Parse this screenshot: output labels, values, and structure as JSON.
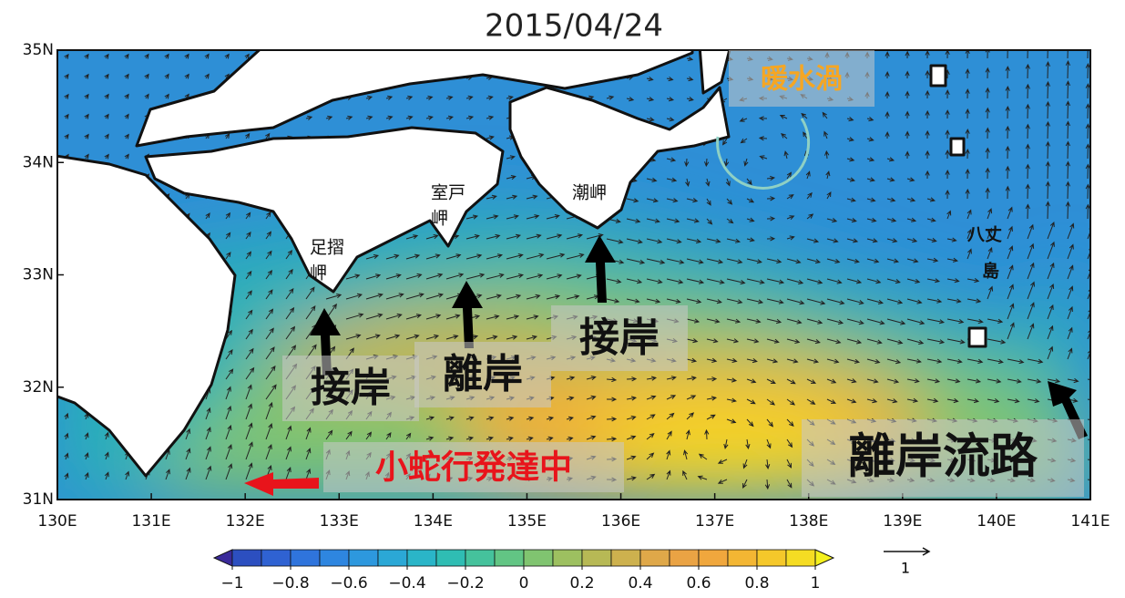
{
  "title": "2015/04/24",
  "map": {
    "xlim": [
      130,
      141
    ],
    "ylim": [
      31,
      35
    ],
    "xticks": [
      {
        "value": 130,
        "label": "130E"
      },
      {
        "value": 131,
        "label": "131E"
      },
      {
        "value": 132,
        "label": "132E"
      },
      {
        "value": 133,
        "label": "133E"
      },
      {
        "value": 134,
        "label": "134E"
      },
      {
        "value": 135,
        "label": "135E"
      },
      {
        "value": 136,
        "label": "136E"
      },
      {
        "value": 137,
        "label": "137E"
      },
      {
        "value": 138,
        "label": "138E"
      },
      {
        "value": 139,
        "label": "139E"
      },
      {
        "value": 140,
        "label": "140E"
      },
      {
        "value": 141,
        "label": "141E"
      }
    ],
    "yticks": [
      {
        "value": 31,
        "label": "31N"
      },
      {
        "value": 32,
        "label": "32N"
      },
      {
        "value": 33,
        "label": "33N"
      },
      {
        "value": 34,
        "label": "34N"
      },
      {
        "value": 35,
        "label": "35N"
      }
    ]
  },
  "places": [
    {
      "lines": [
        "足摺",
        "岬"
      ]
    },
    {
      "lines": [
        "室戸",
        "岬"
      ]
    },
    {
      "lines": [
        "潮岬"
      ]
    },
    {
      "lines": [
        "八丈",
        "島"
      ]
    }
  ],
  "annotations": [
    {
      "text": "暖水渦",
      "color": "#f5a623"
    },
    {
      "text": "接岸",
      "color": "#111111"
    },
    {
      "text": "離岸",
      "color": "#111111"
    },
    {
      "text": "接岸",
      "color": "#111111"
    },
    {
      "text": "離岸流路",
      "color": "#111111"
    },
    {
      "text": "小蛇行発達中",
      "color": "#e8141b"
    }
  ],
  "colorbar": {
    "ticks": [
      {
        "value": -1,
        "label": "−1"
      },
      {
        "value": -0.8,
        "label": "−0.8"
      },
      {
        "value": -0.6,
        "label": "−0.6"
      },
      {
        "value": -0.4,
        "label": "−0.4"
      },
      {
        "value": -0.2,
        "label": "−0.2"
      },
      0,
      0.2,
      0.4,
      0.6,
      0.8,
      1
    ],
    "colors": [
      "#3a2a9a",
      "#2c4fc0",
      "#2f62d2",
      "#2f74dc",
      "#2e86e0",
      "#2d98de",
      "#2ba8d6",
      "#2ab5c8",
      "#2fbdb3",
      "#45c29c",
      "#62c584",
      "#80c470",
      "#9dc060",
      "#b7b955",
      "#cdb14e",
      "#dfa849",
      "#eaa344",
      "#f0a73d",
      "#f3b633",
      "#f5c82a",
      "#f5dc23",
      "#f4f01d"
    ]
  },
  "reference_vector": {
    "label": "1"
  }
}
